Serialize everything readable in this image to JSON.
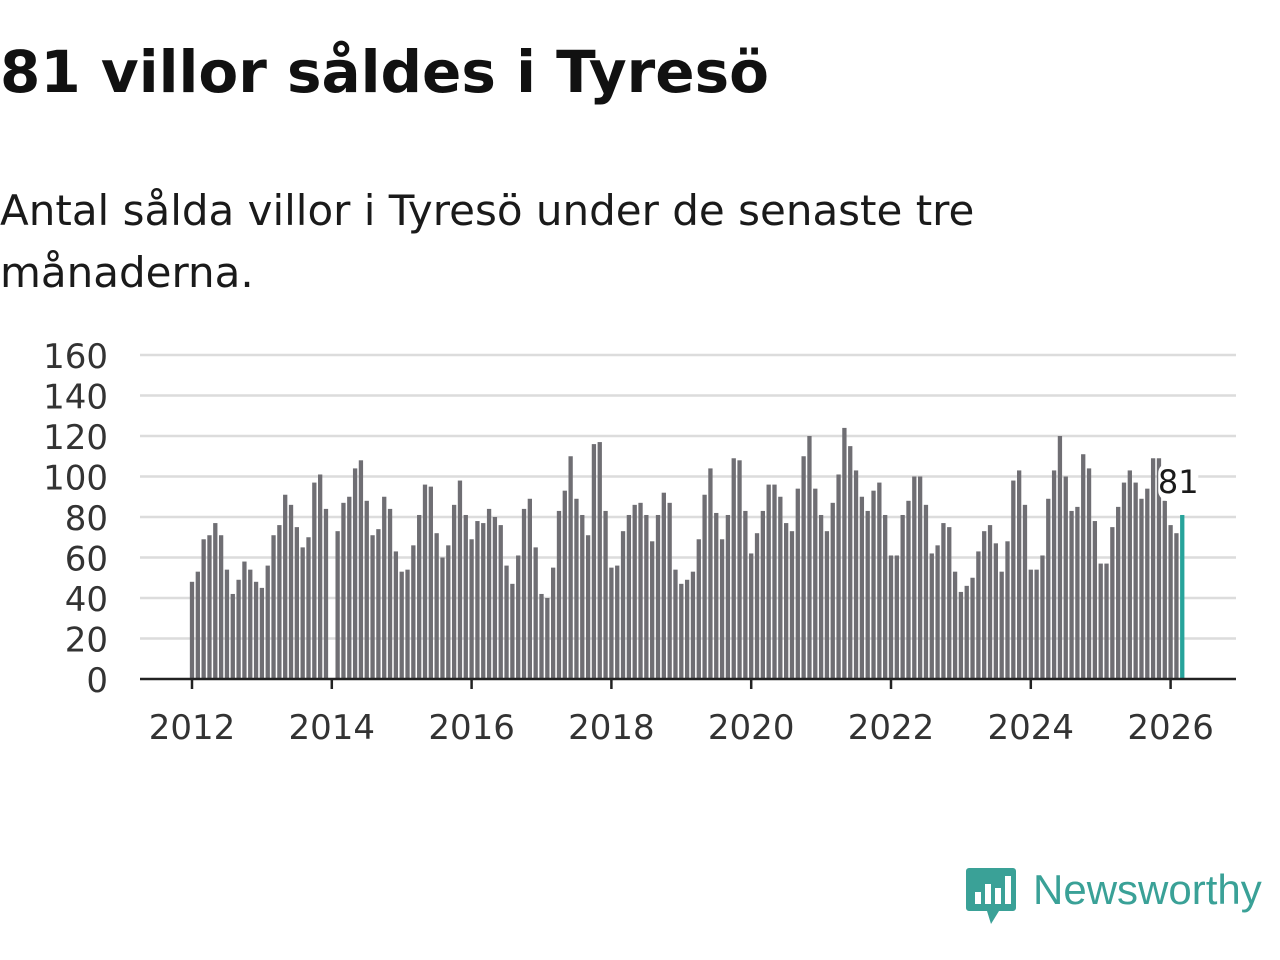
{
  "title": "81 villor såldes i Tyresö",
  "subtitle": "Antal sålda villor i Tyresö under de senaste tre månaderna.",
  "colors": {
    "bar": "#6f6e73",
    "highlight": "#27a39b",
    "grid": "#dcdcdc",
    "brand": "#3aa197"
  },
  "brand": {
    "name": "Newsworthy",
    "icon": "newsworthy-logo-icon"
  },
  "chart_data": {
    "type": "bar",
    "title": "81 villor såldes i Tyresö",
    "xlabel": "",
    "ylabel": "",
    "ylim": [
      0,
      160
    ],
    "y_ticks": [
      0,
      20,
      40,
      60,
      80,
      100,
      120,
      140,
      160
    ],
    "x_ticks": [
      "2012",
      "2014",
      "2016",
      "2018",
      "2020",
      "2022",
      "2024",
      "2026"
    ],
    "start": "2012-01",
    "end": "2026-03",
    "values": [
      48,
      53,
      69,
      71,
      77,
      71,
      54,
      42,
      49,
      58,
      54,
      48,
      45,
      56,
      71,
      76,
      91,
      86,
      75,
      65,
      70,
      97,
      101,
      84,
      null,
      73,
      87,
      90,
      104,
      108,
      88,
      71,
      74,
      90,
      84,
      63,
      53,
      54,
      66,
      81,
      96,
      95,
      72,
      60,
      66,
      86,
      98,
      81,
      69,
      78,
      77,
      84,
      80,
      76,
      56,
      47,
      61,
      84,
      89,
      65,
      42,
      40,
      55,
      83,
      93,
      110,
      89,
      81,
      71,
      116,
      117,
      83,
      55,
      56,
      73,
      81,
      86,
      87,
      81,
      68,
      81,
      92,
      87,
      54,
      47,
      49,
      53,
      69,
      91,
      104,
      82,
      69,
      81,
      109,
      108,
      83,
      62,
      72,
      83,
      96,
      96,
      90,
      77,
      73,
      94,
      110,
      120,
      94,
      81,
      73,
      87,
      101,
      124,
      115,
      103,
      90,
      83,
      93,
      97,
      81,
      61,
      61,
      81,
      88,
      100,
      100,
      86,
      62,
      66,
      77,
      75,
      53,
      43,
      46,
      50,
      63,
      73,
      76,
      67,
      53,
      68,
      98,
      103,
      86,
      54,
      54,
      61,
      89,
      103,
      120,
      100,
      83,
      85,
      111,
      104,
      78,
      57,
      57,
      75,
      85,
      97,
      103,
      97,
      89,
      94,
      109,
      109,
      88,
      76,
      72,
      81
    ],
    "highlight_last": true,
    "last_label": "81"
  }
}
